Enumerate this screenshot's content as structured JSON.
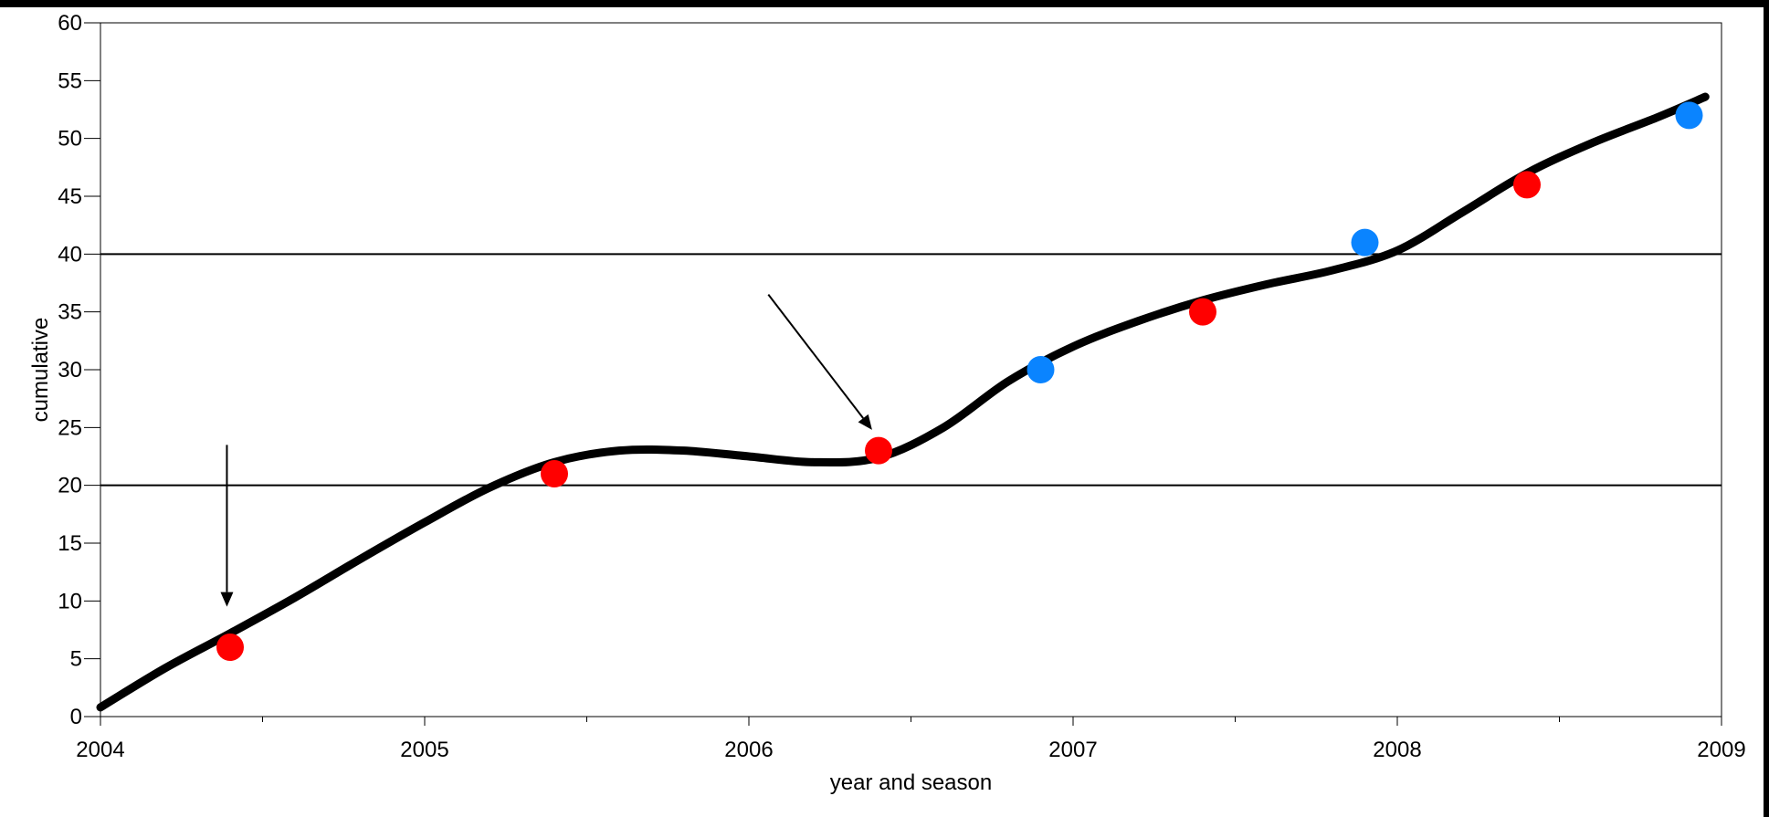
{
  "chart_data": {
    "type": "scatter",
    "xlabel": "year and season",
    "ylabel": "cumulative",
    "xlim": [
      2004,
      2009
    ],
    "ylim": [
      0,
      60
    ],
    "x_ticks": [
      2004,
      2005,
      2006,
      2007,
      2008,
      2009
    ],
    "x_minor_ticks": [
      2004.5,
      2005.5,
      2006.5,
      2007.5,
      2008.5
    ],
    "y_ticks": [
      0,
      5,
      10,
      15,
      20,
      25,
      30,
      35,
      40,
      45,
      50,
      55,
      60
    ],
    "reference_lines": [
      20,
      40
    ],
    "grid": false,
    "series": [
      {
        "color": "#ff0000",
        "points": [
          {
            "x": 2004.4,
            "y": 6
          },
          {
            "x": 2005.4,
            "y": 21
          },
          {
            "x": 2006.4,
            "y": 23
          },
          {
            "x": 2007.4,
            "y": 35
          },
          {
            "x": 2008.4,
            "y": 46
          }
        ]
      },
      {
        "color": "#0a84ff",
        "points": [
          {
            "x": 2006.9,
            "y": 30
          },
          {
            "x": 2007.9,
            "y": 41
          },
          {
            "x": 2008.9,
            "y": 52
          }
        ]
      }
    ],
    "trend_line": {
      "color": "#000000",
      "points": [
        {
          "x": 2004.0,
          "y": 0.8
        },
        {
          "x": 2004.2,
          "y": 4.2
        },
        {
          "x": 2004.4,
          "y": 7.2
        },
        {
          "x": 2004.6,
          "y": 10.3
        },
        {
          "x": 2004.8,
          "y": 13.6
        },
        {
          "x": 2005.0,
          "y": 16.8
        },
        {
          "x": 2005.2,
          "y": 19.8
        },
        {
          "x": 2005.4,
          "y": 22.0
        },
        {
          "x": 2005.6,
          "y": 23.0
        },
        {
          "x": 2005.8,
          "y": 23.0
        },
        {
          "x": 2006.0,
          "y": 22.5
        },
        {
          "x": 2006.2,
          "y": 22.0
        },
        {
          "x": 2006.4,
          "y": 22.4
        },
        {
          "x": 2006.6,
          "y": 25.0
        },
        {
          "x": 2006.8,
          "y": 29.0
        },
        {
          "x": 2007.0,
          "y": 32.0
        },
        {
          "x": 2007.2,
          "y": 34.2
        },
        {
          "x": 2007.4,
          "y": 36.0
        },
        {
          "x": 2007.6,
          "y": 37.4
        },
        {
          "x": 2007.8,
          "y": 38.6
        },
        {
          "x": 2008.0,
          "y": 40.3
        },
        {
          "x": 2008.2,
          "y": 43.6
        },
        {
          "x": 2008.4,
          "y": 47.0
        },
        {
          "x": 2008.6,
          "y": 49.6
        },
        {
          "x": 2008.8,
          "y": 51.8
        },
        {
          "x": 2008.95,
          "y": 53.6
        }
      ]
    },
    "annotations": [
      {
        "type": "arrow",
        "from": {
          "x": 2004.39,
          "y": 23.5
        },
        "to": {
          "x": 2004.39,
          "y": 9.5
        }
      },
      {
        "type": "arrow",
        "from": {
          "x": 2006.06,
          "y": 36.5
        },
        "to": {
          "x": 2006.38,
          "y": 24.8
        }
      }
    ]
  }
}
